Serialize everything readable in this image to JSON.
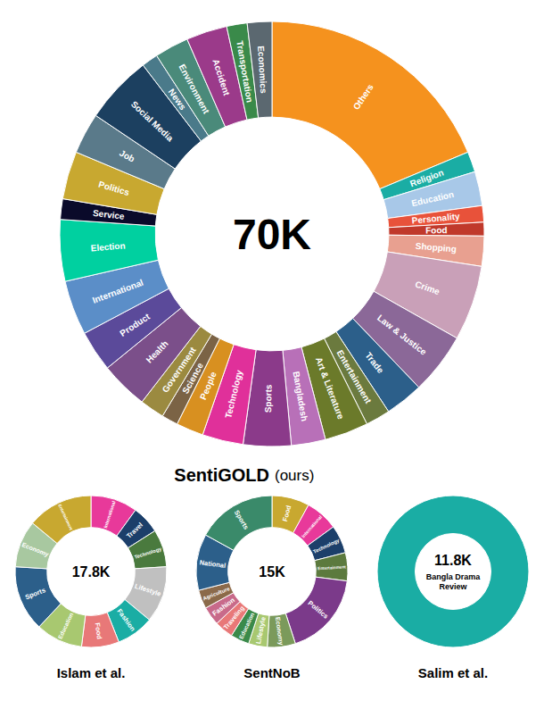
{
  "chart_data": [
    {
      "type": "pie",
      "title": "SentiGOLD",
      "subtitle": "(ours)",
      "annotations": [
        "70K"
      ],
      "categories": [
        "Others",
        "Religion",
        "Education",
        "Personality",
        "Food",
        "Shopping",
        "Crime",
        "Law & Justice",
        "Trade",
        "Entertainment",
        "Art & Literature",
        "Bangladesh",
        "Sports",
        "Technology",
        "People",
        "Science",
        "Government",
        "Health",
        "Product",
        "International",
        "Election",
        "Service",
        "Politics",
        "Job",
        "Social Media",
        "News",
        "Environment",
        "Accident",
        "Transportation",
        "Economics"
      ],
      "values": [
        18.0,
        1.5,
        2.5,
        1.2,
        1.0,
        2.2,
        5.5,
        4.5,
        2.8,
        1.8,
        3.2,
        2.5,
        3.5,
        3.0,
        2.0,
        1.2,
        1.8,
        3.5,
        3.0,
        4.0,
        4.5,
        1.5,
        3.5,
        3.0,
        5.0,
        1.2,
        2.5,
        3.0,
        1.5,
        1.8
      ],
      "colors": [
        "#F5921E",
        "#1AADA4",
        "#A8C8E8",
        "#E8523A",
        "#C0392B",
        "#E8A090",
        "#C9A0B8",
        "#8B6898",
        "#2C5F8A",
        "#6B7A3E",
        "#6B7A2A",
        "#B870B8",
        "#8B3A8A",
        "#E0309A",
        "#D89020",
        "#7B6345",
        "#9B8A40",
        "#7B4F8A",
        "#5B4A9A",
        "#5B8EC8",
        "#00D0A0",
        "#0A0A2A",
        "#C8A830",
        "#5A7A8A",
        "#1C4060",
        "#4A7A8A",
        "#4A8A7A",
        "#9B3A8A",
        "#3A8A4A",
        "#5B6870"
      ]
    },
    {
      "type": "pie",
      "title": "Islam et al.",
      "annotations": [
        "17.8K"
      ],
      "categories": [
        "International",
        "Travel",
        "Technology",
        "Lifestyle",
        "Fashion",
        "Food",
        "Education",
        "Sports",
        "Economy",
        "Entertainment"
      ],
      "values": [
        10,
        6,
        8,
        12,
        8,
        8,
        10,
        14,
        10,
        14
      ],
      "colors": [
        "#E8399A",
        "#1C3F6A",
        "#4A7A3E",
        "#C0C0C0",
        "#1AADA4",
        "#E87878",
        "#A8C870",
        "#2C5F8A",
        "#A8C8A0",
        "#C8A830"
      ]
    },
    {
      "type": "pie",
      "title": "SentNoB",
      "annotations": [
        "15K"
      ],
      "categories": [
        "Food",
        "International",
        "Technology",
        "Entertainment",
        "Politics",
        "Economy",
        "Lifestyle",
        "Education",
        "Traveling",
        "Fashion",
        "Agriculture",
        "National",
        "Sports"
      ],
      "values": [
        8,
        7,
        6,
        6,
        18,
        6,
        4,
        4,
        4,
        4,
        4,
        12,
        17
      ],
      "colors": [
        "#C8A830",
        "#E8399A",
        "#1C3F6A",
        "#5C7A3E",
        "#7B3A8A",
        "#7B9A5B",
        "#A8C870",
        "#3A8A4A",
        "#E87878",
        "#C86A8A",
        "#8B6A4A",
        "#2C5F8A",
        "#3A8A6A"
      ]
    },
    {
      "type": "pie",
      "title": "Salim et al.",
      "annotations": [
        "11.8K",
        "Bangla Drama\nReview"
      ],
      "values": [
        1
      ],
      "colors": [
        "#1AADA4"
      ]
    }
  ]
}
